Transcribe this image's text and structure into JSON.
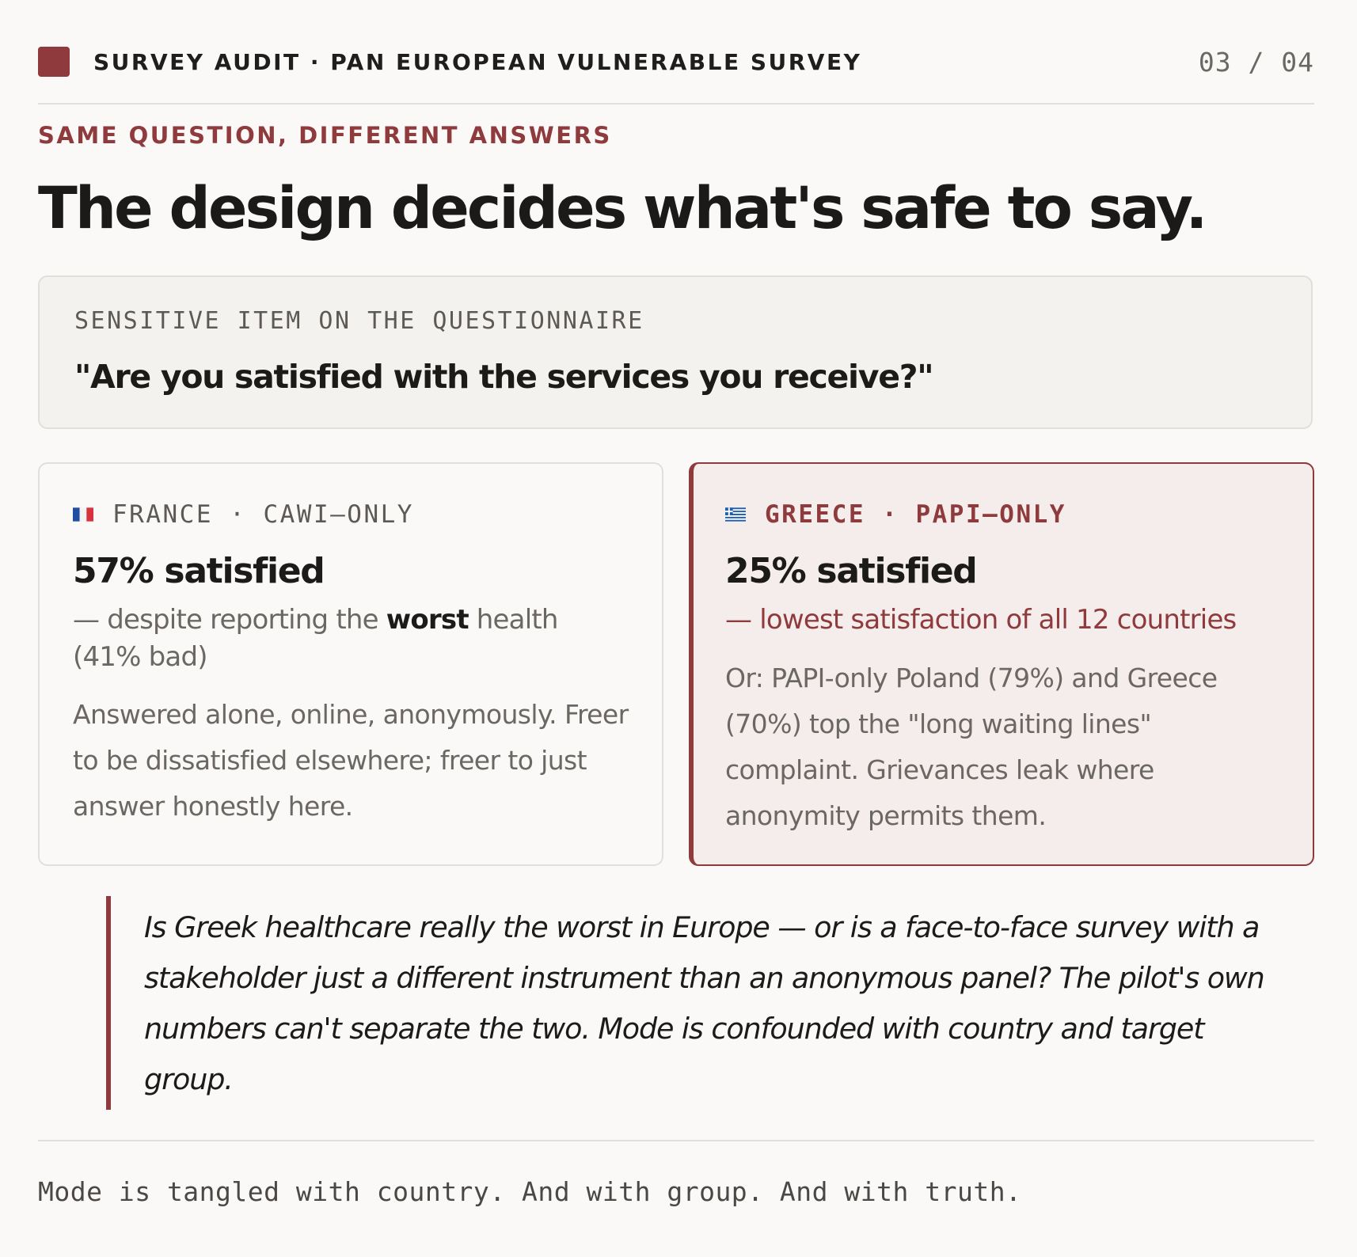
{
  "header": {
    "brand": "SURVEY AUDIT · PAN EUROPEAN VULNERABLE SURVEY",
    "pager": "03 / 04"
  },
  "kicker": "SAME QUESTION, DIFFERENT ANSWERS",
  "headline": "The design decides what's safe to say.",
  "question_box": {
    "label": "SENSITIVE ITEM ON THE QUESTIONNAIRE",
    "text": "\"Are you satisfied with the services you receive?\""
  },
  "cards": [
    {
      "flag": "france-flag",
      "label": "FRANCE · CAWI–ONLY",
      "stat": "57% satisfied",
      "sub_before": "— despite reporting the ",
      "sub_bold": "worst",
      "sub_after": " health (41% bad)",
      "body": "Answered alone, online, anonymously. Freer to be dissatisfied elsewhere; freer to just answer honestly here."
    },
    {
      "flag": "greece-flag",
      "label": "GREECE · PAPI–ONLY",
      "stat": "25% satisfied",
      "sub": "— lowest satisfaction of all 12 countries",
      "body": "Or: PAPI-only Poland (79%) and Greece (70%) top the \"long waiting lines\" complaint. Grievances leak where anonymity permits them."
    }
  ],
  "quote": "Is Greek healthcare really the worst in Europe — or is a face-to-face survey with a stakeholder just a different instrument than an anonymous panel? The pilot's own numbers can't separate the two. Mode is confounded with country and target group.",
  "footer": "Mode is tangled with country. And with group. And with truth.",
  "colors": {
    "accent": "#8f3a3c",
    "background": "#faf9f7",
    "card_highlight": "#f4edeb",
    "text": "#1c1b19",
    "muted": "#6b6864"
  }
}
